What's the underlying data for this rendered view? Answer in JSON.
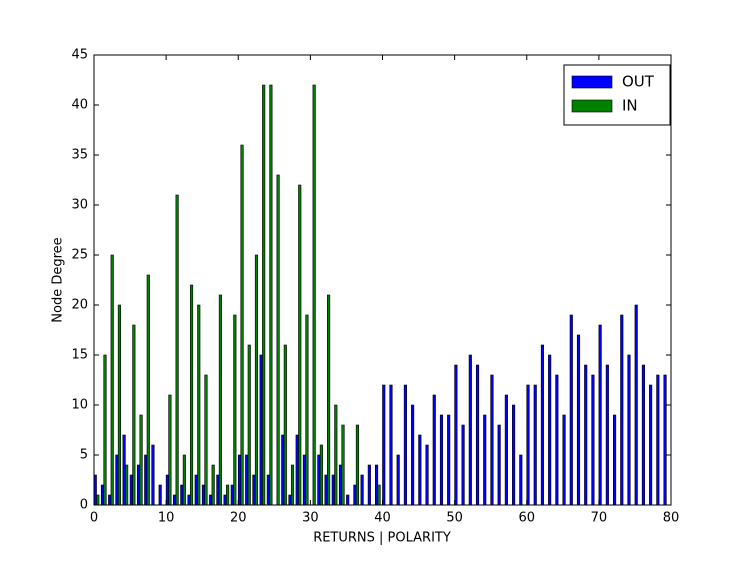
{
  "chart_data": {
    "type": "bar",
    "xlabel": "RETURNS | POLARITY",
    "ylabel": "Node Degree",
    "x": [
      0,
      1,
      2,
      3,
      4,
      5,
      6,
      7,
      8,
      9,
      10,
      11,
      12,
      13,
      14,
      15,
      16,
      17,
      18,
      19,
      20,
      21,
      22,
      23,
      24,
      25,
      26,
      27,
      28,
      29,
      30,
      31,
      32,
      33,
      34,
      35,
      36,
      37,
      38,
      39,
      40,
      41,
      42,
      43,
      44,
      45,
      46,
      47,
      48,
      49,
      50,
      51,
      52,
      53,
      54,
      55,
      56,
      57,
      58,
      59,
      60,
      61,
      62,
      63,
      64,
      65,
      66,
      67,
      68,
      69,
      70,
      71,
      72,
      73,
      74,
      75,
      76,
      77,
      78,
      79
    ],
    "series": [
      {
        "name": "OUT",
        "color": "#0000ff",
        "values": [
          3,
          2,
          1,
          5,
          7,
          3,
          4,
          5,
          6,
          2,
          3,
          1,
          2,
          1,
          3,
          2,
          1,
          3,
          1,
          2,
          5,
          5,
          3,
          15,
          3,
          0,
          7,
          1,
          7,
          5,
          0,
          5,
          3,
          3,
          4,
          1,
          2,
          3,
          4,
          4,
          12,
          12,
          5,
          12,
          10,
          7,
          6,
          11,
          9,
          9,
          14,
          8,
          15,
          14,
          9,
          13,
          8,
          11,
          10,
          5,
          12,
          12,
          16,
          15,
          13,
          9,
          19,
          17,
          14,
          13,
          18,
          14,
          9,
          19,
          15,
          20,
          14,
          12,
          13,
          13
        ]
      },
      {
        "name": "IN",
        "color": "#008000",
        "values": [
          1,
          15,
          25,
          20,
          4,
          18,
          9,
          23,
          0,
          0,
          11,
          31,
          5,
          22,
          20,
          13,
          4,
          21,
          2,
          19,
          36,
          16,
          25,
          42,
          42,
          33,
          16,
          4,
          32,
          19,
          42,
          6,
          21,
          10,
          8,
          0,
          8,
          0,
          0,
          2,
          0,
          0,
          0,
          0,
          0,
          0,
          0,
          0,
          0,
          0,
          0,
          0,
          0,
          0,
          0,
          0,
          0,
          0,
          0,
          0,
          0,
          0,
          0,
          0,
          0,
          0,
          0,
          0,
          0,
          0,
          0,
          0,
          0,
          0,
          0,
          0,
          0,
          0,
          0,
          0
        ]
      }
    ],
    "xlim": [
      0,
      80
    ],
    "xticks": [
      0,
      10,
      20,
      30,
      40,
      50,
      60,
      70,
      80
    ],
    "ylim": [
      0,
      45
    ],
    "yticks": [
      0,
      5,
      10,
      15,
      20,
      25,
      30,
      35,
      40,
      45
    ],
    "grid": false,
    "legend": "upper right"
  }
}
